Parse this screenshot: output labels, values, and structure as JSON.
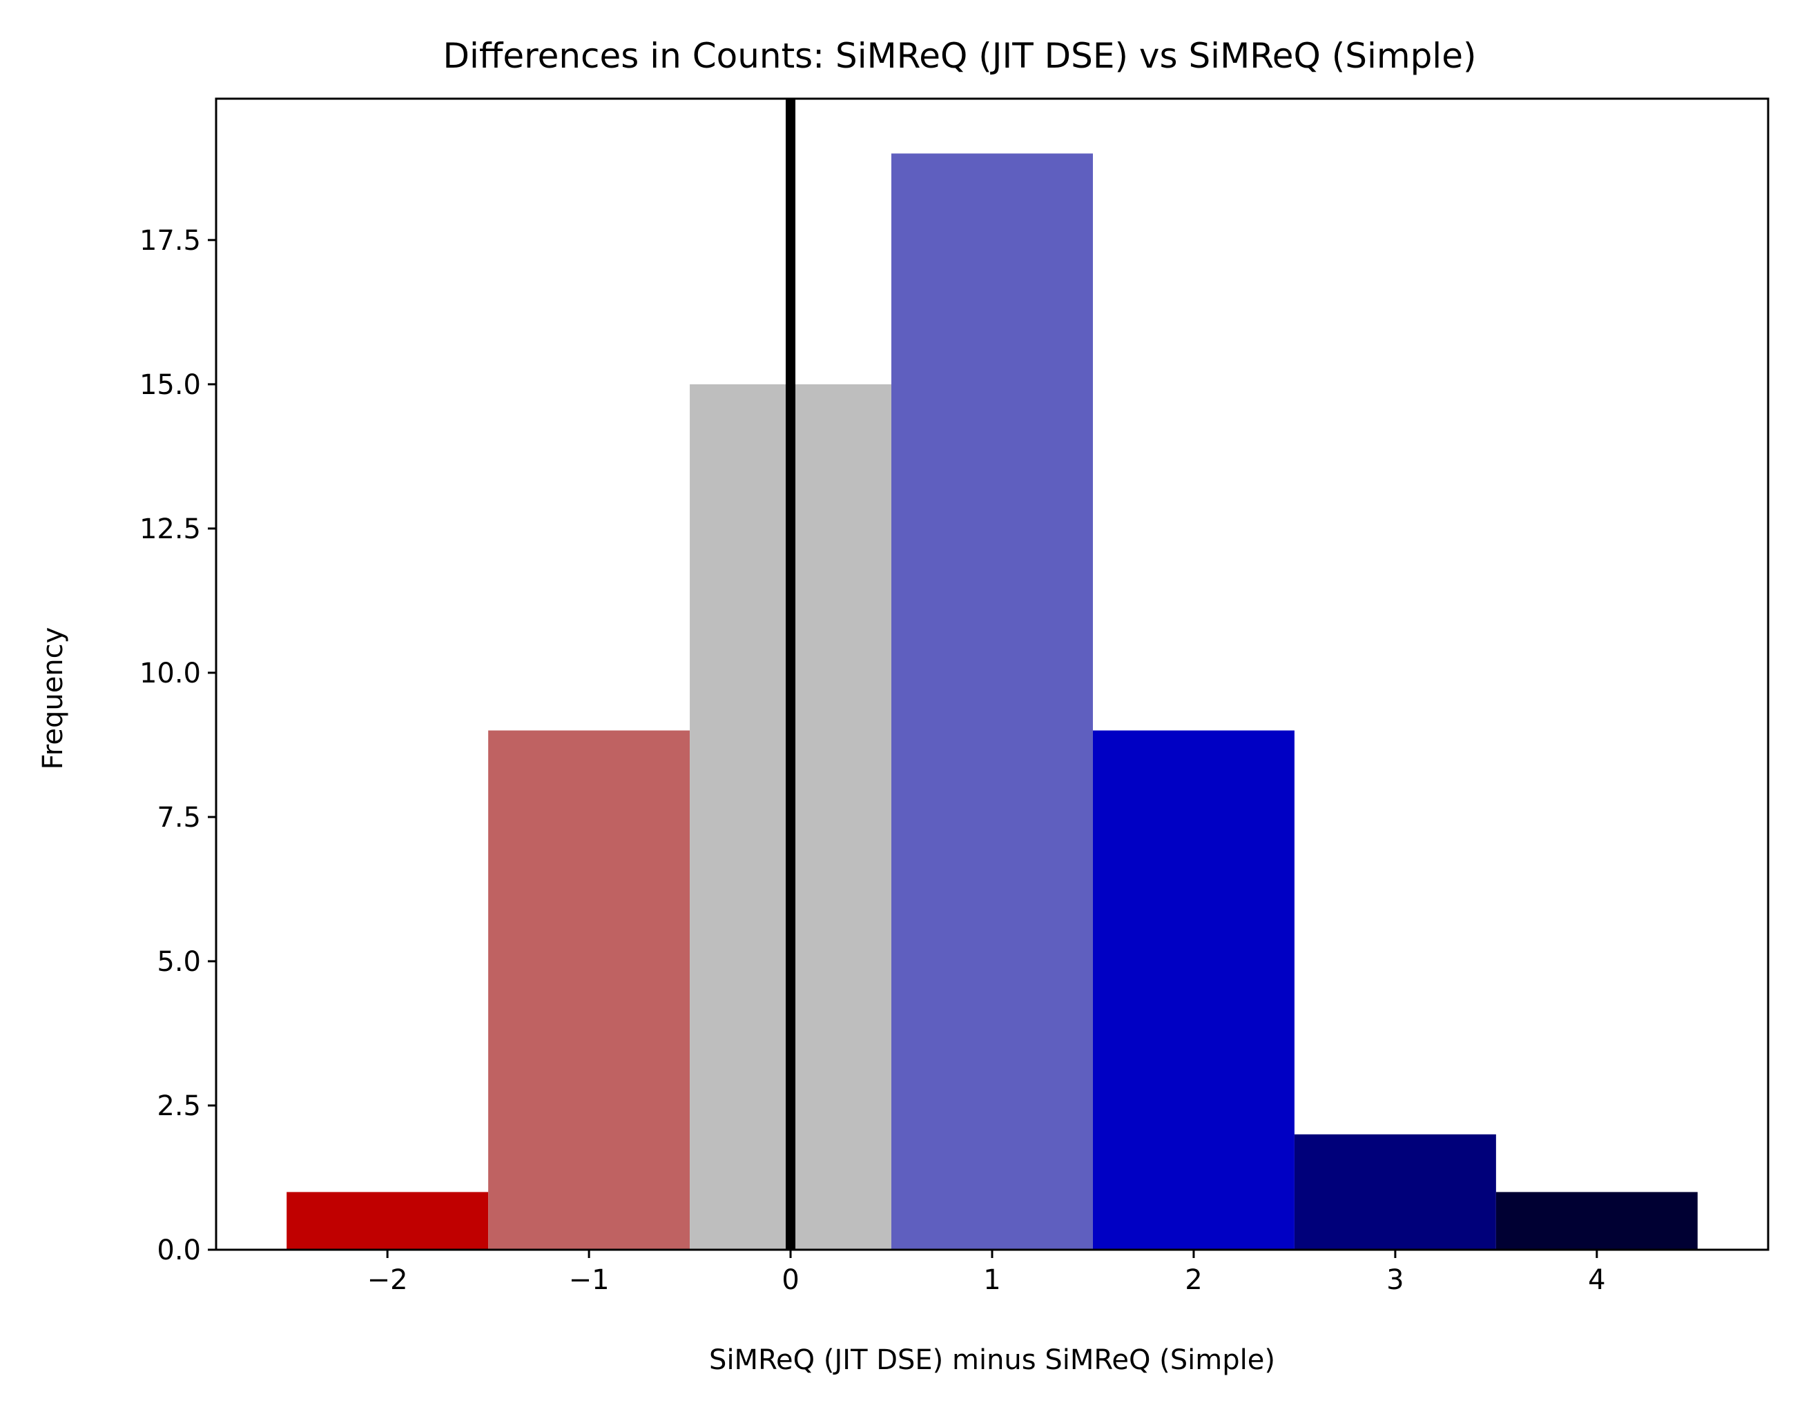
{
  "chart_data": {
    "type": "bar",
    "title": "Differences in Counts: SiMReQ (JIT DSE) vs SiMReQ (Simple)",
    "xlabel": "SiMReQ (JIT DSE) minus SiMReQ (Simple)",
    "ylabel": "Frequency",
    "x_ticks": [
      -2,
      -1,
      0,
      1,
      2,
      3,
      4
    ],
    "x_tick_labels": [
      "−2",
      "−1",
      "0",
      "1",
      "2",
      "3",
      "4"
    ],
    "y_ticks": [
      0,
      2.5,
      5,
      7.5,
      10,
      12.5,
      15,
      17.5
    ],
    "y_tick_labels": [
      "0.0",
      "2.5",
      "5.0",
      "7.5",
      "10.0",
      "12.5",
      "15.0",
      "17.5"
    ],
    "xlim": [
      -2.85,
      4.85
    ],
    "ylim": [
      0,
      19.95
    ],
    "bin_width": 1,
    "bins": [
      {
        "x": -2,
        "value": 1,
        "color": "#c00000"
      },
      {
        "x": -1,
        "value": 9,
        "color": "#bf6262"
      },
      {
        "x": 0,
        "value": 15,
        "color": "#bebebe"
      },
      {
        "x": 1,
        "value": 19,
        "color": "#5f5fbf"
      },
      {
        "x": 2,
        "value": 9,
        "color": "#0000c4"
      },
      {
        "x": 3,
        "value": 2,
        "color": "#00007a"
      },
      {
        "x": 4,
        "value": 1,
        "color": "#000033"
      }
    ],
    "reference_line": {
      "x": 0,
      "color": "#000000"
    },
    "grid": false,
    "legend": "none"
  }
}
